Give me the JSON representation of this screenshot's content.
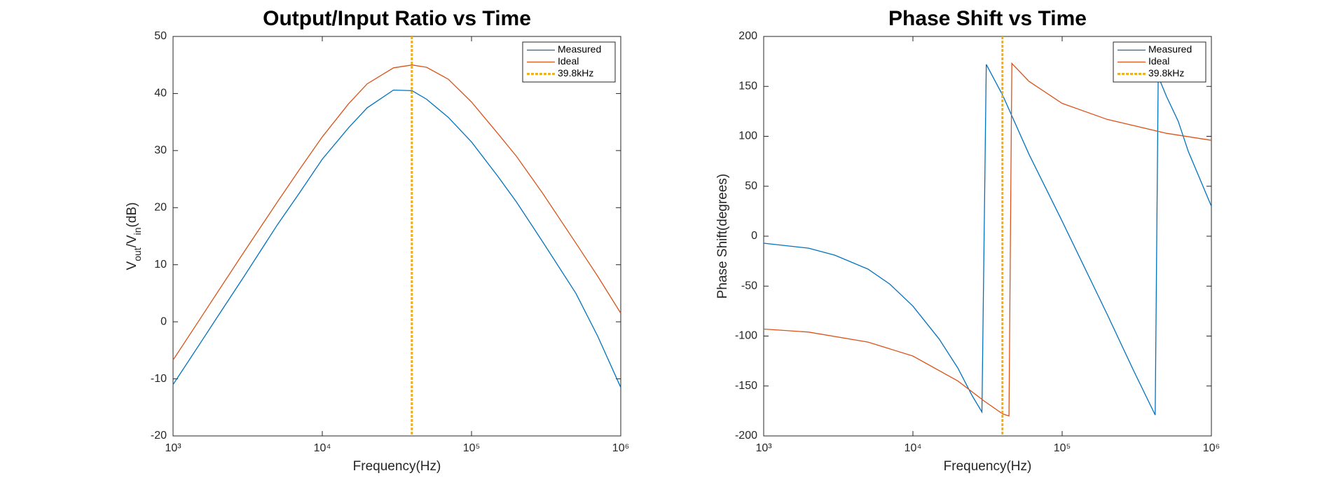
{
  "chart_data": [
    {
      "type": "line",
      "title": "Output/Input Ratio vs Time",
      "xlabel": "Frequency(Hz)",
      "ylabel": [
        {
          "text": "V"
        },
        {
          "text": "out",
          "sub": true
        },
        {
          "text": "/V"
        },
        {
          "text": "in",
          "sub": true
        },
        {
          "text": "(dB)"
        }
      ],
      "xscale": "log",
      "xlim": [
        1000,
        1000000
      ],
      "xticks": [
        {
          "value": 1000,
          "label": "10³"
        },
        {
          "value": 10000,
          "label": "10⁴"
        },
        {
          "value": 100000,
          "label": "10⁵"
        },
        {
          "value": 1000000,
          "label": "10⁶"
        }
      ],
      "ylim": [
        -20,
        50
      ],
      "yticks": [
        -20,
        -10,
        0,
        10,
        20,
        30,
        40,
        50
      ],
      "legend": "upper right",
      "series": [
        {
          "name": "Measured",
          "color": "#0072bd",
          "x": [
            1000,
            1500,
            2000,
            3000,
            5000,
            7000,
            10000,
            15000,
            20000,
            30000,
            40000,
            50000,
            70000,
            100000,
            150000,
            200000,
            300000,
            500000,
            700000,
            1000000
          ],
          "values": [
            -11,
            -4,
            1,
            8,
            17,
            22.5,
            28.5,
            34,
            37.5,
            40.6,
            40.5,
            39,
            35.8,
            31.5,
            25.5,
            21,
            14,
            5,
            -2.5,
            -11.5
          ]
        },
        {
          "name": "Ideal",
          "color": "#d95319",
          "x": [
            1000,
            1500,
            2000,
            3000,
            5000,
            7000,
            10000,
            15000,
            20000,
            30000,
            40000,
            50000,
            70000,
            100000,
            150000,
            200000,
            300000,
            500000,
            700000,
            1000000
          ],
          "values": [
            -6.7,
            0.3,
            5.3,
            12.3,
            21,
            26.6,
            32.4,
            38.2,
            41.7,
            44.5,
            45,
            44.6,
            42.5,
            38.5,
            33,
            29,
            22.5,
            13.8,
            8,
            1.5
          ]
        },
        {
          "name": "39.8kHz",
          "color": "#edb120",
          "kind": "vline",
          "x": 39800
        }
      ]
    },
    {
      "type": "line",
      "title": "Phase Shift vs Time",
      "xlabel": "Frequency(Hz)",
      "ylabel": [
        {
          "text": "Phase Shift(degrees)"
        }
      ],
      "xscale": "log",
      "xlim": [
        1000,
        1000000
      ],
      "xticks": [
        {
          "value": 1000,
          "label": "10³"
        },
        {
          "value": 10000,
          "label": "10⁴"
        },
        {
          "value": 100000,
          "label": "10⁵"
        },
        {
          "value": 1000000,
          "label": "10⁶"
        }
      ],
      "ylim": [
        -200,
        200
      ],
      "yticks": [
        -200,
        -150,
        -100,
        -50,
        0,
        50,
        100,
        150,
        200
      ],
      "legend": "upper right",
      "series": [
        {
          "name": "Measured",
          "color": "#0072bd",
          "x": [
            1000,
            2000,
            3000,
            5000,
            7000,
            10000,
            15000,
            20000,
            25000,
            29000,
            31000,
            40000,
            60000,
            100000,
            200000,
            300000,
            420000,
            440000,
            500000,
            600000,
            700000,
            850000,
            1000000
          ],
          "values": [
            -7,
            -12,
            -19,
            -33,
            -48,
            -70,
            -103,
            -132,
            -160,
            -176,
            172,
            141,
            82,
            15,
            -78,
            -134,
            -179,
            160,
            140,
            115,
            85,
            55,
            30
          ]
        },
        {
          "name": "Ideal",
          "color": "#d95319",
          "x": [
            1000,
            2000,
            5000,
            10000,
            20000,
            30000,
            40000,
            44000,
            46000,
            60000,
            100000,
            200000,
            500000,
            1000000
          ],
          "values": [
            -93,
            -96,
            -106,
            -120,
            -145,
            -165,
            -178,
            -180,
            173,
            155,
            133,
            117,
            103,
            96
          ]
        },
        {
          "name": "39.8kHz",
          "color": "#edb120",
          "kind": "vline",
          "x": 39800
        }
      ]
    }
  ]
}
